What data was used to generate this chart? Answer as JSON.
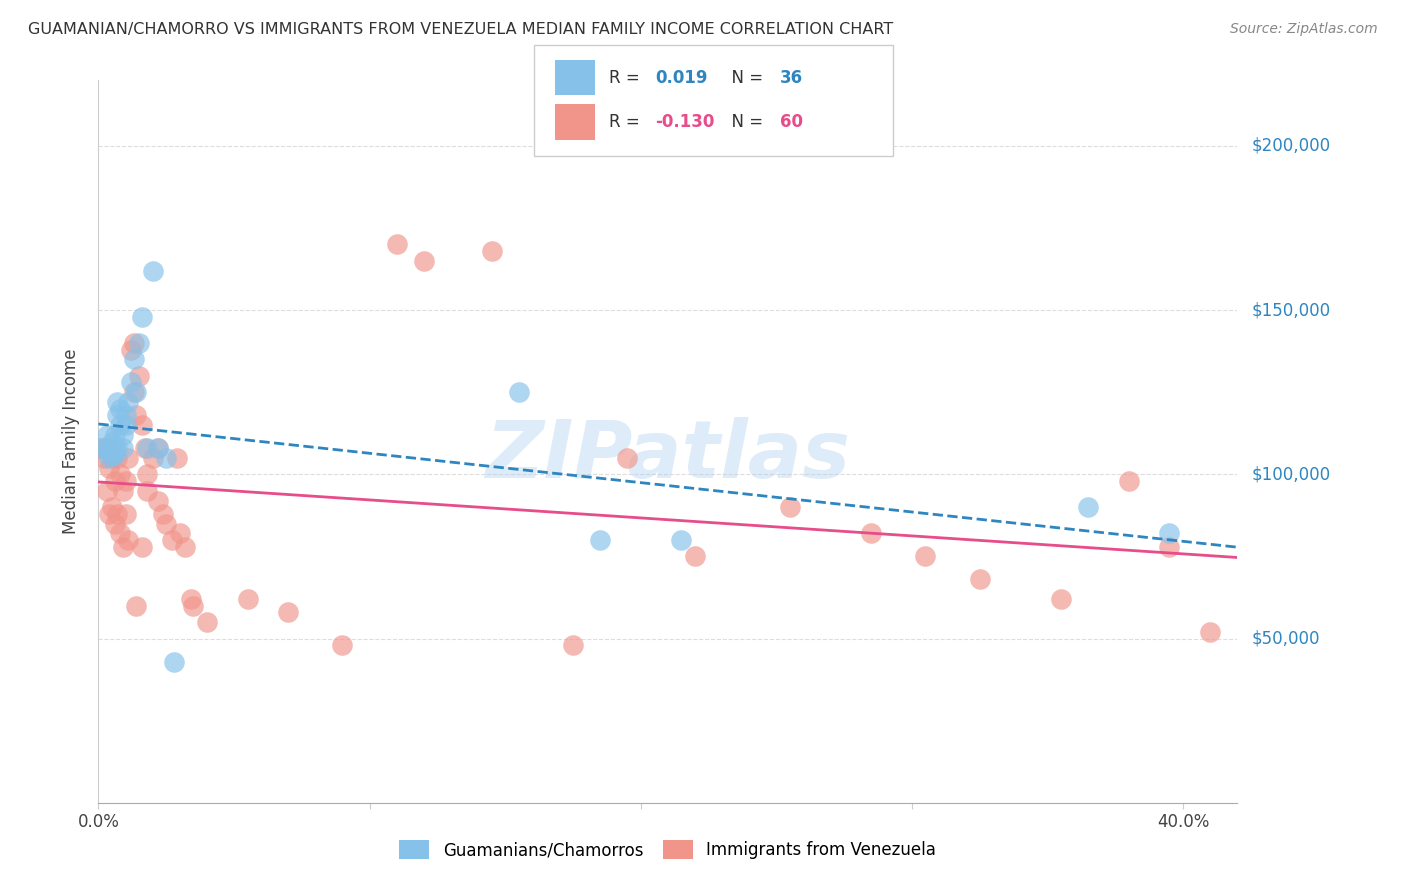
{
  "title": "GUAMANIAN/CHAMORRO VS IMMIGRANTS FROM VENEZUELA MEDIAN FAMILY INCOME CORRELATION CHART",
  "source": "Source: ZipAtlas.com",
  "ylabel": "Median Family Income",
  "y_ticks": [
    0,
    50000,
    100000,
    150000,
    200000
  ],
  "y_tick_labels": [
    "",
    "$50,000",
    "$100,000",
    "$150,000",
    "$200,000"
  ],
  "xlim": [
    0.0,
    0.42
  ],
  "ylim": [
    0,
    220000
  ],
  "color_blue": "#85C1E9",
  "color_pink": "#F1948A",
  "line_blue": "#2E86C1",
  "line_pink": "#E74C8B",
  "watermark": "ZIPatlas",
  "blue_x": [
    0.001,
    0.003,
    0.003,
    0.004,
    0.004,
    0.005,
    0.005,
    0.005,
    0.006,
    0.006,
    0.006,
    0.007,
    0.007,
    0.007,
    0.008,
    0.008,
    0.009,
    0.009,
    0.01,
    0.01,
    0.011,
    0.012,
    0.013,
    0.014,
    0.015,
    0.016,
    0.018,
    0.02,
    0.022,
    0.025,
    0.028,
    0.155,
    0.185,
    0.215,
    0.365,
    0.395
  ],
  "blue_y": [
    108000,
    112000,
    108000,
    105000,
    107000,
    110000,
    108000,
    106000,
    108000,
    106000,
    112000,
    122000,
    118000,
    108000,
    120000,
    115000,
    112000,
    108000,
    118000,
    115000,
    122000,
    128000,
    135000,
    125000,
    140000,
    148000,
    108000,
    162000,
    108000,
    105000,
    43000,
    125000,
    80000,
    80000,
    90000,
    82000
  ],
  "pink_x": [
    0.001,
    0.002,
    0.003,
    0.003,
    0.004,
    0.004,
    0.005,
    0.005,
    0.006,
    0.006,
    0.007,
    0.007,
    0.008,
    0.008,
    0.009,
    0.009,
    0.01,
    0.01,
    0.011,
    0.011,
    0.012,
    0.013,
    0.013,
    0.014,
    0.015,
    0.016,
    0.017,
    0.018,
    0.02,
    0.022,
    0.024,
    0.025,
    0.027,
    0.029,
    0.03,
    0.032,
    0.034,
    0.12,
    0.145,
    0.175,
    0.195,
    0.22,
    0.255,
    0.285,
    0.305,
    0.325,
    0.355,
    0.38,
    0.395,
    0.41,
    0.022,
    0.018,
    0.016,
    0.014,
    0.035,
    0.04,
    0.055,
    0.07,
    0.09,
    0.11
  ],
  "pink_y": [
    108000,
    105000,
    108000,
    95000,
    102000,
    88000,
    105000,
    90000,
    98000,
    85000,
    105000,
    88000,
    100000,
    82000,
    95000,
    78000,
    98000,
    88000,
    105000,
    80000,
    138000,
    140000,
    125000,
    118000,
    130000,
    115000,
    108000,
    100000,
    105000,
    92000,
    88000,
    85000,
    80000,
    105000,
    82000,
    78000,
    62000,
    165000,
    168000,
    48000,
    105000,
    75000,
    90000,
    82000,
    75000,
    68000,
    62000,
    98000,
    78000,
    52000,
    108000,
    95000,
    78000,
    60000,
    60000,
    55000,
    62000,
    58000,
    48000,
    170000
  ]
}
